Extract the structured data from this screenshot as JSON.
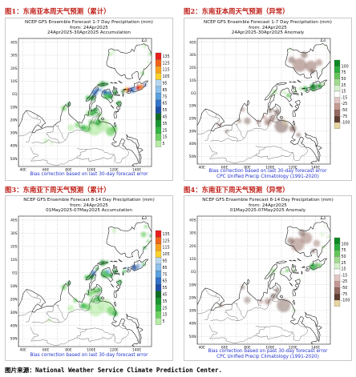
{
  "captions": [
    "图1：东南亚本周天气预测（累计）",
    "图2：东南亚本周天气预测（异常）",
    "图3：东南亚下周天气预测（累计）",
    "图4：东南亚下周天气预测（异常）"
  ],
  "source": "图片来源：National Weather Service Climate Prediction Center.",
  "chart_data": [
    {
      "type": "heatmap",
      "title": "NCEP GFS Ensemble Forecast 1-7 Day Precipitation (mm)",
      "subtitle_from": "from: 24Apr2025",
      "subtitle_period": "24Apr2025-30Apr2025 Accumulation",
      "x_ticks": [
        "40E",
        "60E",
        "80E",
        "100E",
        "120E",
        "140E"
      ],
      "y_ticks": [
        "50N",
        "40N",
        "30N",
        "20N",
        "10N",
        "EQ",
        "10S",
        "20S",
        "30S",
        "40S"
      ],
      "legend_levels": [
        "135",
        "125",
        "115",
        "105",
        "95",
        "85",
        "75",
        "65",
        "55",
        "45",
        "35",
        "25",
        "15",
        "5"
      ],
      "legend_colors": [
        "#e81d1d",
        "#f2641a",
        "#f7a21c",
        "#fcd22a",
        "#b7d7f0",
        "#8ec2ec",
        "#5ba1e0",
        "#3273c9",
        "#1d4fa8",
        "#0f6d23",
        "#199630",
        "#31b642",
        "#6dd064",
        "#b6eca6"
      ],
      "notes": [
        "Bias correction based on last 30-day forecast error"
      ]
    },
    {
      "type": "heatmap",
      "title": "NCEP GFS Ensemble Forecast 1-7 Day Precipitation (mm)",
      "subtitle_from": "from: 24Apr2025",
      "subtitle_period": "24Apr2025-30Apr2025 Anomaly",
      "x_ticks": [
        "40E",
        "60E",
        "80E",
        "100E",
        "120E",
        "140E"
      ],
      "y_ticks": [
        "50N",
        "40N",
        "30N",
        "20N",
        "10N",
        "EQ",
        "10S",
        "20S",
        "30S",
        "40S"
      ],
      "legend_levels": [
        "100",
        "75",
        "50",
        "25",
        "15",
        "-15",
        "-25",
        "-50",
        "-75",
        "-100"
      ],
      "legend_colors": [
        "#0b8a23",
        "#2aae3c",
        "#63c659",
        "#9fdc8e",
        "#d5f2cb",
        "#ffffff",
        "#e2c6c3",
        "#c49893",
        "#946960",
        "#5e3c30",
        "#e7d6a0"
      ],
      "notes": [
        "Bias correction based on last 30-day forecast error",
        "CPC Unified Precip Climatology (1991-2020)"
      ]
    },
    {
      "type": "heatmap",
      "title": "NCEP GFS Ensemble Forecast 8-14 Day Precipitation (mm)",
      "subtitle_from": "from: 24Apr2025",
      "subtitle_period": "01May2025-07May2025 Accumulation",
      "x_ticks": [
        "40E",
        "60E",
        "80E",
        "100E",
        "120E",
        "140E"
      ],
      "y_ticks": [
        "50N",
        "40N",
        "30N",
        "20N",
        "10N",
        "EQ",
        "10S",
        "20S",
        "30S",
        "40S"
      ],
      "legend_levels": [
        "135",
        "125",
        "115",
        "105",
        "95",
        "85",
        "75",
        "65",
        "55",
        "45",
        "35",
        "25",
        "15",
        "5"
      ],
      "legend_colors": [
        "#e81d1d",
        "#f2641a",
        "#f7a21c",
        "#fcd22a",
        "#b7d7f0",
        "#8ec2ec",
        "#5ba1e0",
        "#3273c9",
        "#1d4fa8",
        "#0f6d23",
        "#199630",
        "#31b642",
        "#6dd064",
        "#b6eca6"
      ],
      "notes": [
        "Bias correction based on last 30-day forecast error"
      ]
    },
    {
      "type": "heatmap",
      "title": "NCEP GFS Ensemble Forecast 8-14 Day Precipitation (mm)",
      "subtitle_from": "from: 24Apr2025",
      "subtitle_period": "01May2025-07May2025 Anomaly",
      "x_ticks": [
        "40E",
        "60E",
        "80E",
        "100E",
        "120E",
        "140E"
      ],
      "y_ticks": [
        "50N",
        "40N",
        "30N",
        "20N",
        "10N",
        "EQ",
        "10S",
        "20S",
        "30S",
        "40S"
      ],
      "legend_levels": [
        "100",
        "75",
        "50",
        "25",
        "15",
        "-15",
        "-25",
        "-50",
        "-75",
        "-100"
      ],
      "legend_colors": [
        "#0b8a23",
        "#2aae3c",
        "#63c659",
        "#9fdc8e",
        "#d5f2cb",
        "#ffffff",
        "#e2c6c3",
        "#c49893",
        "#946960",
        "#5e3c30",
        "#e7d6a0"
      ],
      "notes": [
        "Bias correction based on past 30-day forecast error",
        "CPC Unified Precip Climatology (1991-2020)"
      ]
    }
  ]
}
